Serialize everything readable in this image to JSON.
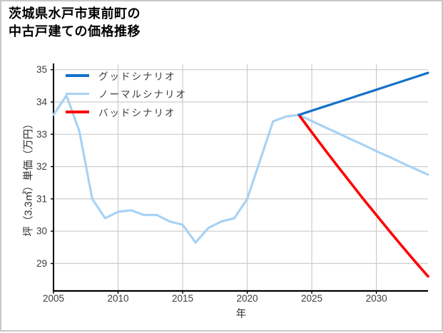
{
  "header": {
    "title_line1": "茨城県水戸市東前町の",
    "title_line2": "中古戸建ての価格推移"
  },
  "chart_data": {
    "type": "line",
    "title": "茨城県水戸市東前町の中古戸建ての価格推移",
    "xlabel": "年",
    "ylabel": "坪（3.3㎡）単価（万円）",
    "xlim": [
      2005,
      2034
    ],
    "ylim": [
      28.15,
      35.17
    ],
    "x_ticks": [
      2005,
      2010,
      2015,
      2020,
      2025,
      2030
    ],
    "y_ticks": [
      29,
      30,
      31,
      32,
      33,
      34,
      35
    ],
    "grid": true,
    "grid_color": "#cccccc",
    "spine_color": "#000000",
    "tick_label_color": "#3c3c3c",
    "legend_position": "upper-left",
    "series": [
      {
        "id": "good",
        "name": "グッドシナリオ",
        "color": "#1571c8",
        "width": 3.2,
        "z": 3,
        "x": [
          2024,
          2025,
          2026,
          2027,
          2028,
          2029,
          2030,
          2031,
          2032,
          2033,
          2034
        ],
        "values": [
          33.6,
          33.73,
          33.86,
          33.99,
          34.12,
          34.25,
          34.38,
          34.51,
          34.64,
          34.77,
          34.9
        ]
      },
      {
        "id": "normal",
        "name": "ノーマルシナリオ",
        "color": "#a8d2f4",
        "width": 3.2,
        "z": 1,
        "x": [
          2005,
          2006,
          2007,
          2008,
          2009,
          2010,
          2011,
          2012,
          2013,
          2014,
          2015,
          2016,
          2017,
          2018,
          2019,
          2020,
          2021,
          2022,
          2023,
          2024,
          2025,
          2026,
          2027,
          2028,
          2029,
          2030,
          2031,
          2032,
          2033,
          2034
        ],
        "values": [
          33.6,
          34.2,
          33.1,
          31.0,
          30.4,
          30.6,
          30.65,
          30.5,
          30.5,
          30.3,
          30.2,
          29.65,
          30.1,
          30.3,
          30.4,
          31.0,
          32.2,
          33.4,
          33.55,
          33.6,
          33.41,
          33.22,
          33.04,
          32.85,
          32.67,
          32.48,
          32.3,
          32.11,
          31.93,
          31.75
        ]
      },
      {
        "id": "bad",
        "name": "バッドシナリオ",
        "color": "#fe0000",
        "width": 3.6,
        "z": 2,
        "x": [
          2024,
          2025,
          2026,
          2027,
          2028,
          2029,
          2030,
          2031,
          2032,
          2033,
          2034
        ],
        "values": [
          33.6,
          33.06,
          32.53,
          32.01,
          31.5,
          30.99,
          30.5,
          30.01,
          29.53,
          29.06,
          28.6
        ]
      }
    ]
  }
}
